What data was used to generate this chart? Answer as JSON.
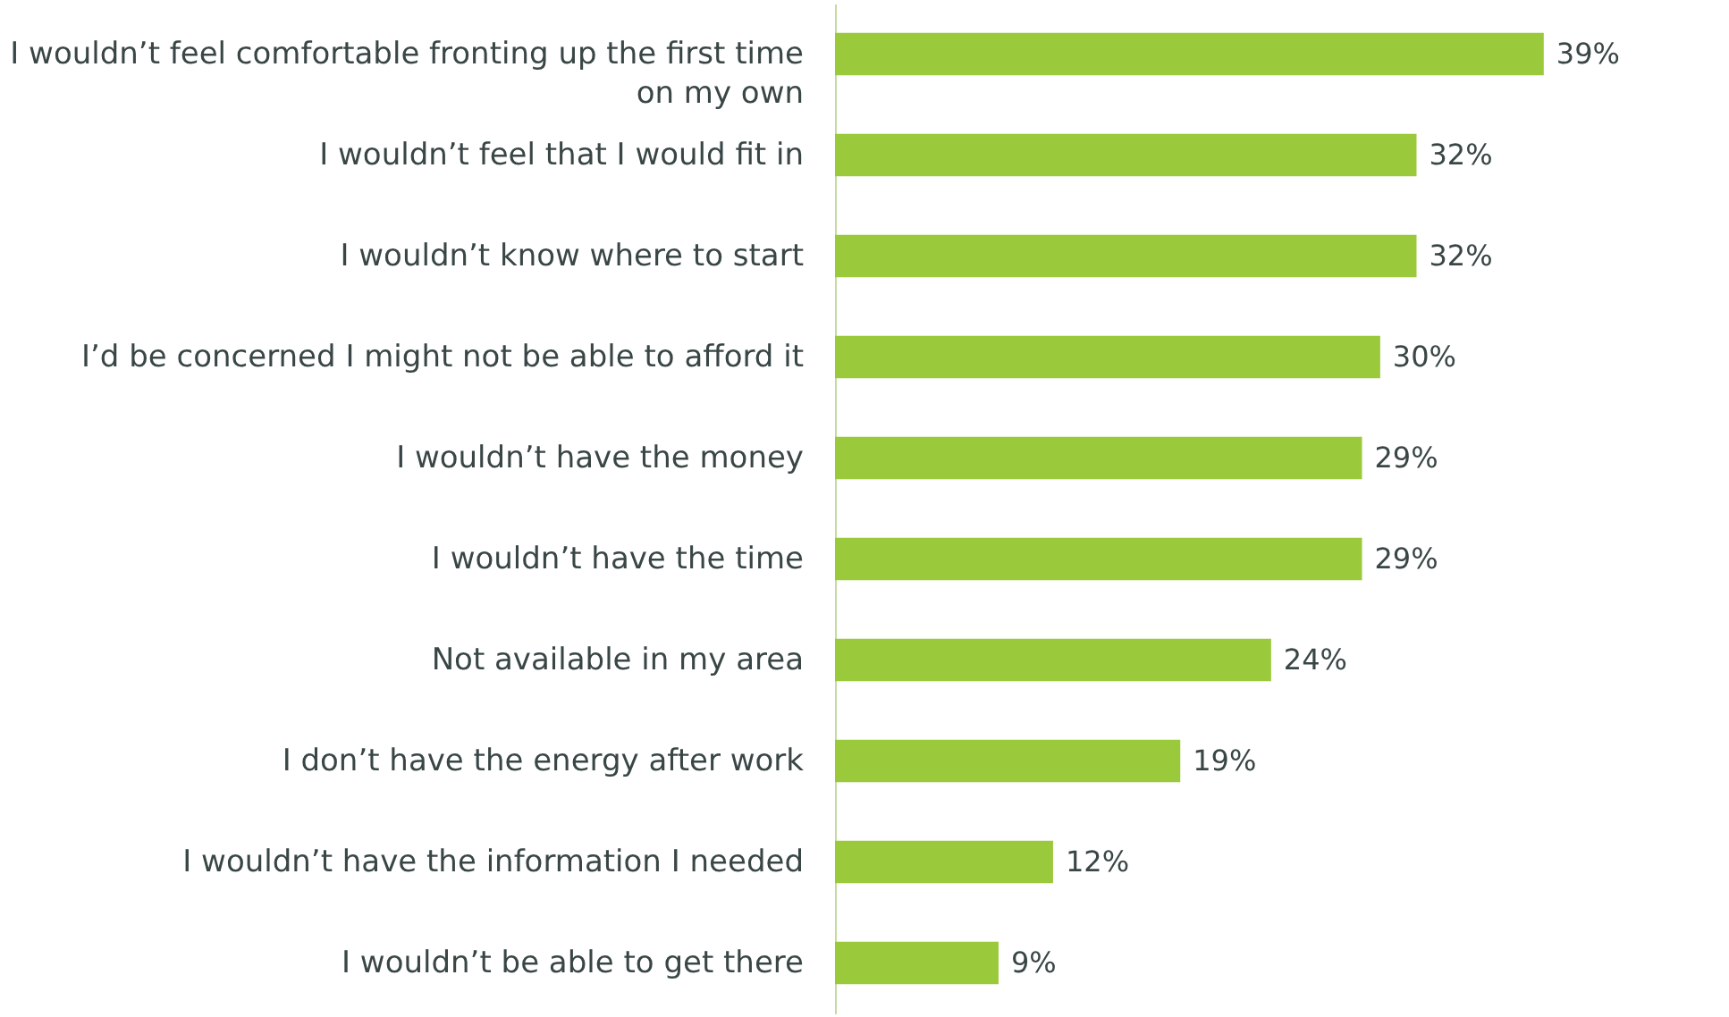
{
  "chart_data": {
    "type": "bar",
    "orientation": "horizontal",
    "categories": [
      "I wouldn’t feel comfortable fronting up the first time on my own",
      "I wouldn’t feel that I would fit in",
      "I wouldn’t know where to start",
      "I’d be concerned I might not be able to afford it",
      "I wouldn’t have the money",
      "I wouldn’t have the time",
      "Not available in my area",
      "I don’t have the energy after work",
      "I wouldn’t have the information I needed",
      "I wouldn’t be able to get there"
    ],
    "values": [
      39,
      32,
      32,
      30,
      29,
      29,
      24,
      19,
      12,
      9
    ],
    "value_labels": [
      "39%",
      "32%",
      "32%",
      "30%",
      "29%",
      "29%",
      "24%",
      "19%",
      "12%",
      "9%"
    ],
    "color": "#9bc93c",
    "grid": false
  }
}
